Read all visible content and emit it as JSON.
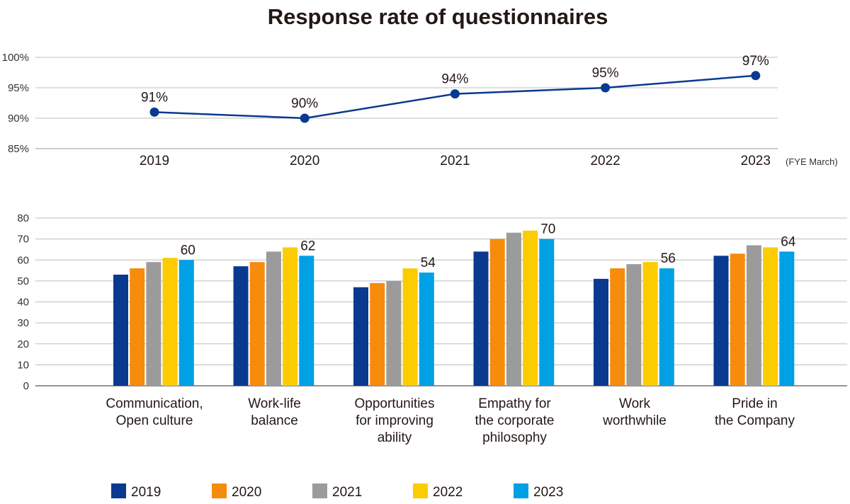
{
  "title": "Response rate of questionnaires",
  "colors": {
    "2019": "#0a3a8f",
    "2020": "#f68b0c",
    "2021": "#9b9b9b",
    "2022": "#fccb00",
    "2023": "#00a0e4",
    "line": "#0a3a8f",
    "grid": "#bdbdbd"
  },
  "chart_data": [
    {
      "type": "line",
      "x": [
        "2019",
        "2020",
        "2021",
        "2022",
        "2023"
      ],
      "series": [
        {
          "values": [
            91,
            90,
            94,
            95,
            97
          ]
        }
      ],
      "data_labels": [
        "91%",
        "90%",
        "94%",
        "95%",
        "97%"
      ],
      "ylim": [
        85,
        100
      ],
      "yticks": [
        85,
        90,
        95,
        100
      ],
      "ytick_labels": [
        "85%",
        "90%",
        "95%",
        "100%"
      ],
      "x_note": "(FYE March)",
      "grid": true
    },
    {
      "type": "bar",
      "categories": [
        [
          "Communication,",
          "Open culture"
        ],
        [
          "Work-life",
          "balance"
        ],
        [
          "Opportunities",
          "for improving",
          "ability"
        ],
        [
          "Empathy for",
          "the corporate",
          "philosophy"
        ],
        [
          "Work",
          "worthwhile"
        ],
        [
          "Pride in",
          "the Company"
        ]
      ],
      "series": [
        {
          "name": "2019",
          "values": [
            53,
            57,
            47,
            64,
            51,
            62
          ]
        },
        {
          "name": "2020",
          "values": [
            56,
            59,
            49,
            70,
            56,
            63
          ]
        },
        {
          "name": "2021",
          "values": [
            59,
            64,
            50,
            73,
            58,
            67
          ]
        },
        {
          "name": "2022",
          "values": [
            61,
            66,
            56,
            74,
            59,
            66
          ]
        },
        {
          "name": "2023",
          "values": [
            60,
            62,
            54,
            70,
            56,
            64
          ]
        }
      ],
      "data_labels_last_series": [
        "60",
        "62",
        "54",
        "70",
        "56",
        "64"
      ],
      "ylim": [
        0,
        80
      ],
      "yticks": [
        0,
        10,
        20,
        30,
        40,
        50,
        60,
        70,
        80
      ],
      "legend_position": "bottom",
      "grid": true
    }
  ]
}
